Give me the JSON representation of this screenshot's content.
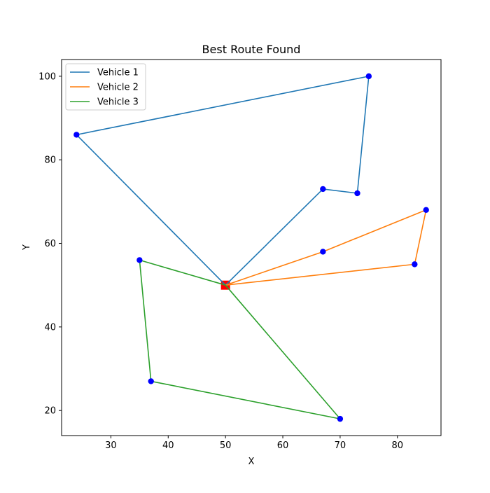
{
  "chart_data": {
    "type": "line",
    "title": "Best Route Found",
    "xlabel": "X",
    "ylabel": "Y",
    "xlim": [
      21.4,
      87.6
    ],
    "ylim": [
      14.0,
      104.0
    ],
    "xticks": [
      30,
      40,
      50,
      60,
      70,
      80
    ],
    "yticks": [
      20,
      40,
      60,
      80,
      100
    ],
    "grid": false,
    "legend": "top-left",
    "depot": {
      "x": 50,
      "y": 50,
      "color": "#ff0000",
      "marker": "square"
    },
    "customers": {
      "color": "#0000ff",
      "points": [
        {
          "x": 24,
          "y": 86
        },
        {
          "x": 75,
          "y": 100
        },
        {
          "x": 73,
          "y": 72
        },
        {
          "x": 67,
          "y": 73
        },
        {
          "x": 67,
          "y": 58
        },
        {
          "x": 85,
          "y": 68
        },
        {
          "x": 83,
          "y": 55
        },
        {
          "x": 35,
          "y": 56
        },
        {
          "x": 37,
          "y": 27
        },
        {
          "x": 70,
          "y": 18
        }
      ]
    },
    "series": [
      {
        "name": "Vehicle 1",
        "color": "#1f77b4",
        "points": [
          {
            "x": 50,
            "y": 50
          },
          {
            "x": 24,
            "y": 86
          },
          {
            "x": 75,
            "y": 100
          },
          {
            "x": 73,
            "y": 72
          },
          {
            "x": 67,
            "y": 73
          },
          {
            "x": 50,
            "y": 50
          }
        ]
      },
      {
        "name": "Vehicle 2",
        "color": "#ff7f0e",
        "points": [
          {
            "x": 50,
            "y": 50
          },
          {
            "x": 67,
            "y": 58
          },
          {
            "x": 85,
            "y": 68
          },
          {
            "x": 83,
            "y": 55
          },
          {
            "x": 50,
            "y": 50
          }
        ]
      },
      {
        "name": "Vehicle 3",
        "color": "#2ca02c",
        "points": [
          {
            "x": 50,
            "y": 50
          },
          {
            "x": 35,
            "y": 56
          },
          {
            "x": 37,
            "y": 27
          },
          {
            "x": 70,
            "y": 18
          },
          {
            "x": 50,
            "y": 50
          }
        ]
      }
    ]
  }
}
